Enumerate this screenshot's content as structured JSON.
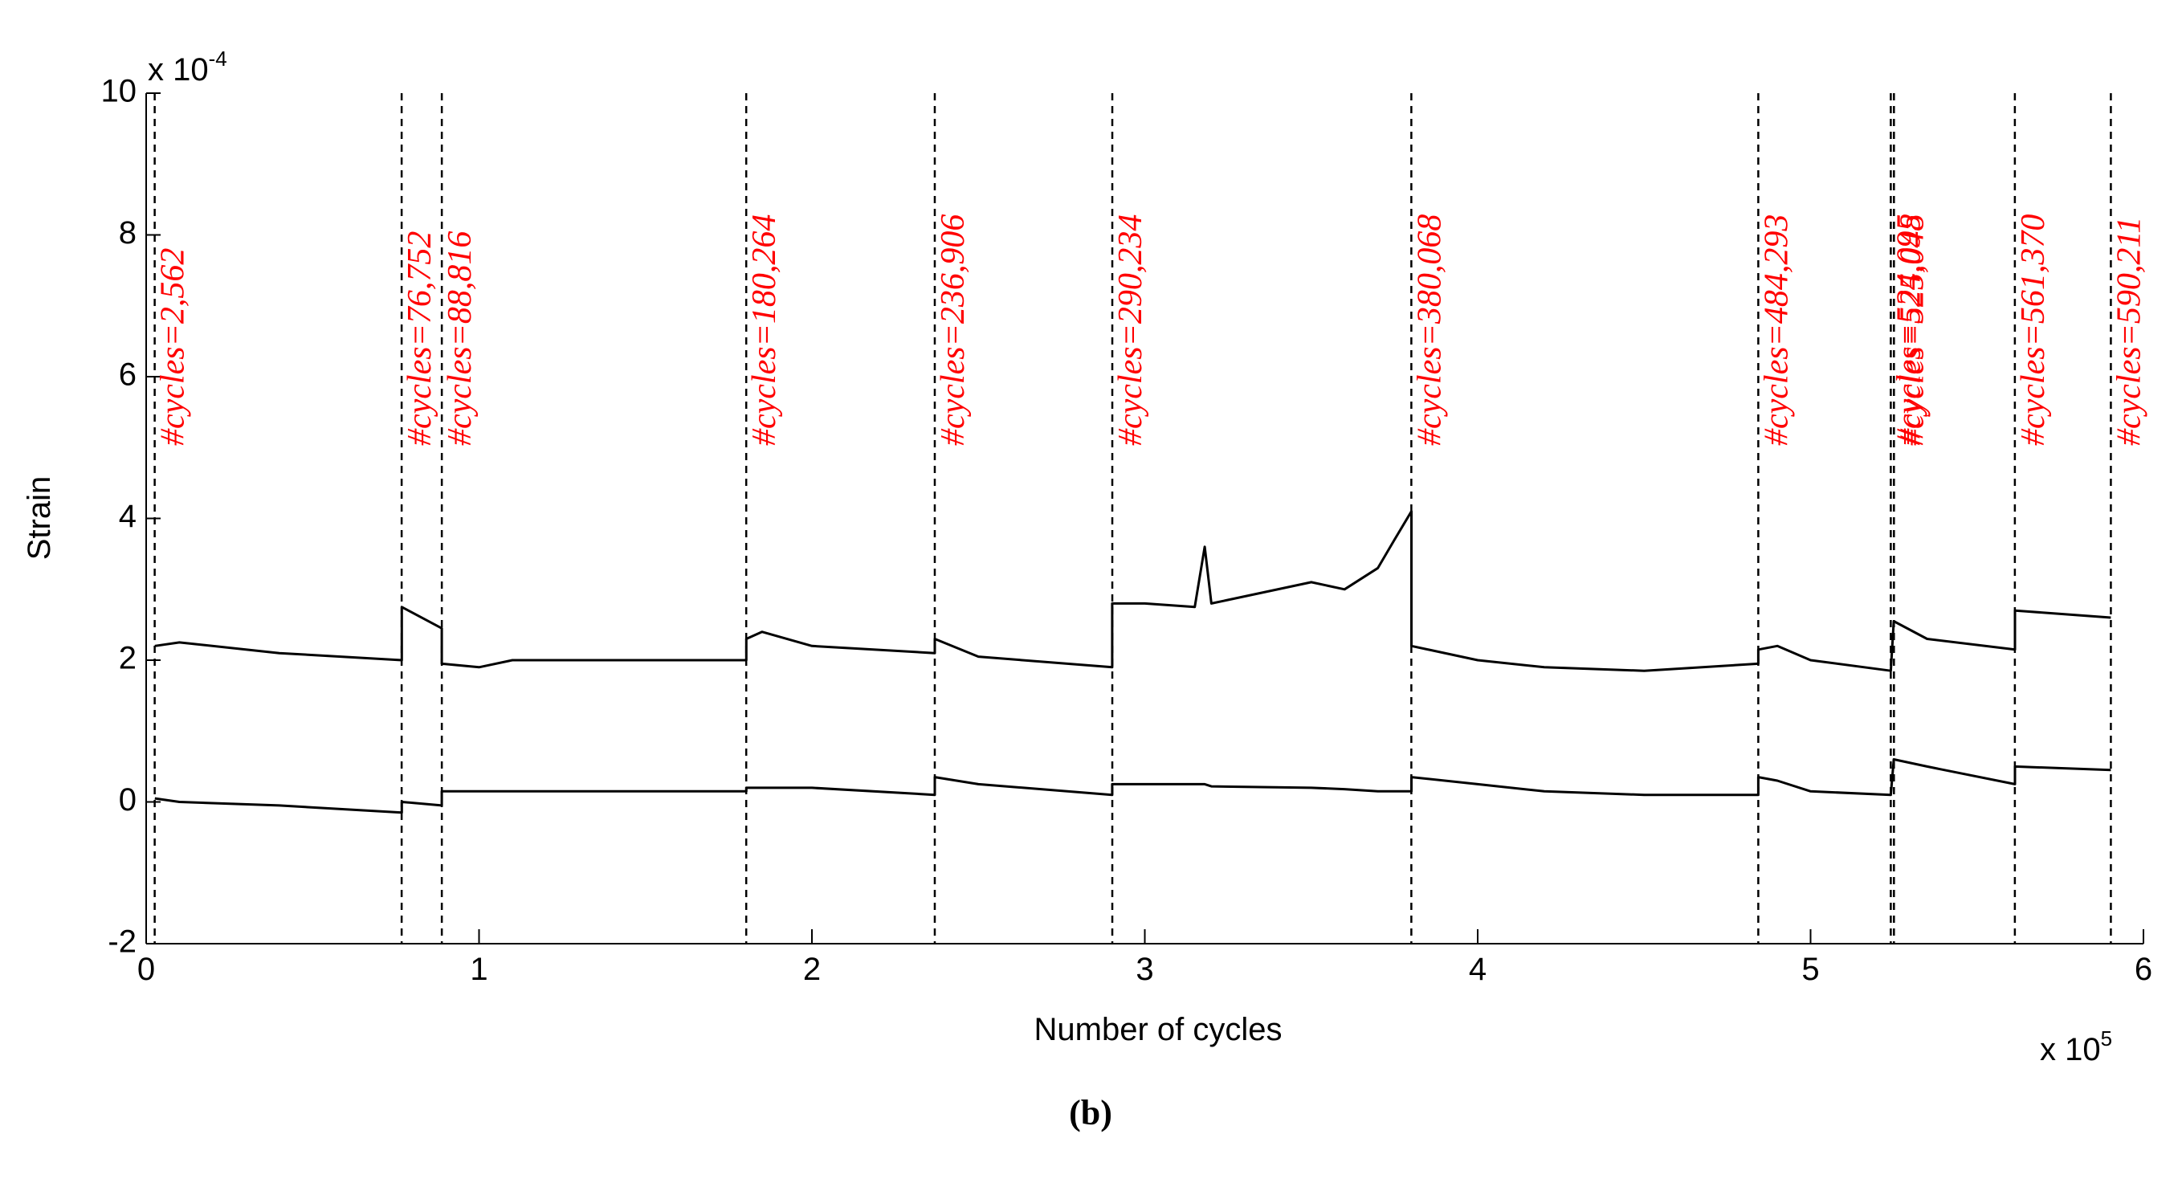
{
  "chart_data": {
    "type": "line",
    "ylabel": "Strain",
    "xlabel": "Number of cycles",
    "y_multiplier": {
      "base": "x 10",
      "exponent": "-4"
    },
    "x_multiplier": {
      "base": "x 10",
      "exponent": "5"
    },
    "caption": "(b)",
    "xlim": [
      0,
      6
    ],
    "xticks": [
      0,
      1,
      2,
      3,
      4,
      5,
      6
    ],
    "ylim": [
      -2,
      10
    ],
    "yticks": [
      -2,
      0,
      2,
      4,
      6,
      8,
      10
    ],
    "x": [
      0.026,
      0.1,
      0.4,
      0.768,
      0.768,
      0.888,
      0.888,
      1.0,
      1.1,
      1.803,
      1.803,
      1.85,
      2.0,
      2.369,
      2.369,
      2.5,
      2.902,
      2.902,
      3.0,
      3.15,
      3.18,
      3.2,
      3.5,
      3.6,
      3.7,
      3.75,
      3.801,
      3.801,
      4.0,
      4.2,
      4.5,
      4.843,
      4.843,
      4.9,
      5.0,
      5.241,
      5.25,
      5.35,
      5.614,
      5.614,
      5.902
    ],
    "series": [
      {
        "color": "#000000",
        "values": [
          2.2,
          2.25,
          2.1,
          2.0,
          2.75,
          2.45,
          1.95,
          1.9,
          2.0,
          2.0,
          2.3,
          2.4,
          2.2,
          2.1,
          2.3,
          2.05,
          1.9,
          2.8,
          2.8,
          2.75,
          3.6,
          2.8,
          3.1,
          3.0,
          3.3,
          3.7,
          4.1,
          2.2,
          2.0,
          1.9,
          1.85,
          1.95,
          2.15,
          2.2,
          2.0,
          1.85,
          2.55,
          2.3,
          2.15,
          2.7,
          2.6
        ]
      },
      {
        "color": "#000000",
        "values": [
          0.05,
          0.0,
          -0.05,
          -0.15,
          0.0,
          -0.05,
          0.15,
          0.15,
          0.15,
          0.15,
          0.2,
          0.2,
          0.2,
          0.1,
          0.35,
          0.25,
          0.1,
          0.25,
          0.25,
          0.25,
          0.25,
          0.22,
          0.2,
          0.18,
          0.15,
          0.15,
          0.15,
          0.35,
          0.25,
          0.15,
          0.1,
          0.1,
          0.35,
          0.3,
          0.15,
          0.1,
          0.6,
          0.5,
          0.25,
          0.5,
          0.45
        ]
      }
    ],
    "annotations": [
      {
        "x": 0.02562,
        "label": "#cycles=2,562"
      },
      {
        "x": 0.76752,
        "label": "#cycles=76,752"
      },
      {
        "x": 0.88816,
        "label": "#cycles=88,816"
      },
      {
        "x": 1.80264,
        "label": "#cycles=180,264"
      },
      {
        "x": 2.36906,
        "label": "#cycles=236,906"
      },
      {
        "x": 2.90234,
        "label": "#cycles=290,234"
      },
      {
        "x": 3.80068,
        "label": "#cycles=380,068"
      },
      {
        "x": 4.84293,
        "label": "#cycles=484,293"
      },
      {
        "x": 5.24095,
        "label": "#cycles=524,095"
      },
      {
        "x": 5.25048,
        "label": "#cycles=525,048"
      },
      {
        "x": 5.6137,
        "label": "#cycles=561,370"
      },
      {
        "x": 5.90211,
        "label": "#cycles=590,211"
      }
    ],
    "annotation_color": "#ff0000",
    "grid": false
  }
}
